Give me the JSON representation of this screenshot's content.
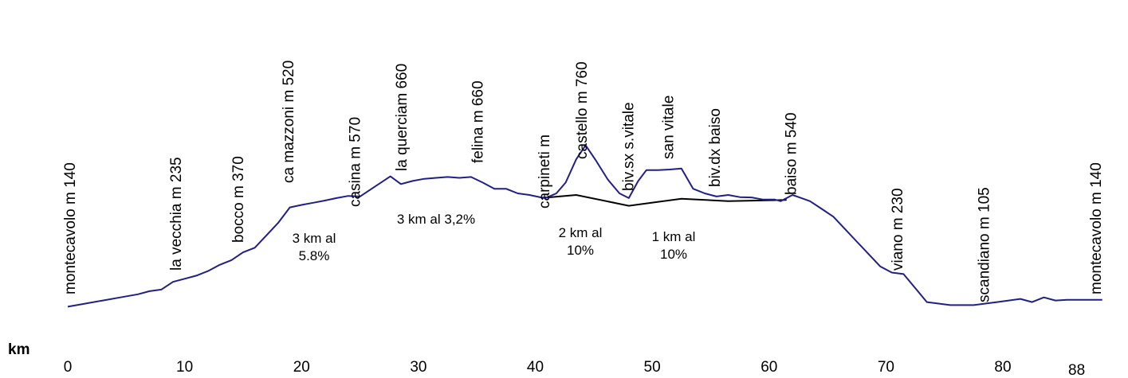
{
  "chart_data": {
    "type": "line",
    "title": "",
    "xlabel": "km",
    "ylabel": "",
    "x_ticks": [
      0,
      10,
      20,
      30,
      40,
      50,
      60,
      70,
      80
    ],
    "x_end_label": "88",
    "xlim": [
      0,
      89
    ],
    "colors": {
      "profile": "#1f1f8c",
      "variant": "#000000",
      "text": "#000000"
    },
    "series": [
      {
        "role": "profile",
        "x": [
          0,
          1.5,
          3,
          4.5,
          6,
          7,
          8,
          9,
          10,
          11,
          12,
          13,
          14,
          15,
          16,
          17,
          18,
          19,
          20,
          21,
          22,
          23,
          24,
          25,
          26,
          27,
          27.6,
          28.5,
          29.5,
          30.5,
          31.5,
          32.5,
          33.5,
          34.5,
          35.5,
          36.5,
          37.5,
          38.5,
          39.5,
          40.5,
          41,
          41.8,
          42.6,
          43.5,
          44.3,
          45.2,
          46.2,
          47.2,
          48,
          48.8,
          49.5,
          50.5,
          51.5,
          52.5,
          53.5,
          54.5,
          55.5,
          56.5,
          57.5,
          58.5,
          59.5,
          60.5,
          61,
          61.5,
          62,
          62.6,
          63.5,
          64.5,
          65.5,
          66.5,
          67.5,
          68.5,
          69.5,
          70.5,
          71.5,
          72.5,
          73.5,
          74.5,
          75.5,
          76.5,
          77.5,
          78.5,
          79.5,
          80.5,
          81.5,
          82.5,
          83.5,
          84.5,
          85.5,
          86.5,
          87.5,
          88.5
        ],
        "y": [
          140,
          150,
          160,
          170,
          180,
          190,
          195,
          220,
          230,
          240,
          255,
          275,
          290,
          315,
          330,
          370,
          410,
          460,
          468,
          475,
          482,
          490,
          497,
          495,
          520,
          545,
          560,
          535,
          545,
          552,
          555,
          558,
          555,
          558,
          540,
          520,
          520,
          505,
          500,
          492,
          492,
          505,
          540,
          615,
          660,
          610,
          550,
          505,
          490,
          545,
          580,
          580,
          582,
          585,
          520,
          505,
          495,
          500,
          493,
          492,
          485,
          485,
          480,
          490,
          500,
          492,
          480,
          455,
          430,
          390,
          350,
          310,
          270,
          250,
          245,
          200,
          155,
          150,
          145,
          145,
          145,
          150,
          155,
          160,
          165,
          155,
          170,
          160,
          162,
          162,
          162,
          162
        ]
      },
      {
        "role": "variant",
        "x": [
          40.5,
          43.5,
          48,
          52.5,
          56.5,
          61.5
        ],
        "y": [
          490,
          500,
          465,
          488,
          480,
          484
        ]
      }
    ],
    "location_labels": [
      {
        "text": "montecavolo m 140",
        "km": 0.6
      },
      {
        "text": "la vecchia m 235",
        "km": 9.7
      },
      {
        "text": "bocco m 370",
        "km": 15
      },
      {
        "text": "ca mazzoni m 520",
        "km": 19.3
      },
      {
        "text": "casina m 570",
        "km": 25
      },
      {
        "text": "la querciam 660",
        "km": 29
      },
      {
        "text": "felina m 660",
        "km": 35.5
      },
      {
        "text": "carpineti m",
        "km": 41.2
      },
      {
        "text": "castello m 760",
        "km": 44.4
      },
      {
        "text": "biv.sx s.vitale",
        "km": 48.4
      },
      {
        "text": "san vitale",
        "km": 51.8
      },
      {
        "text": "biv.dx baiso",
        "km": 55.8
      },
      {
        "text": "baiso m 540",
        "km": 62.3
      },
      {
        "text": "viano m 230",
        "km": 71.4
      },
      {
        "text": "scandiano m 105",
        "km": 78.8
      },
      {
        "text": "montecavolo m 140",
        "km": 88.4
      }
    ],
    "grade_annotations": [
      {
        "lines": [
          "3 km al",
          "5.8%"
        ]
      },
      {
        "lines": [
          "3 km al 3,2%"
        ]
      },
      {
        "lines": [
          "2 km al",
          "10%"
        ]
      },
      {
        "lines": [
          "1 km al",
          "10%"
        ]
      }
    ]
  }
}
